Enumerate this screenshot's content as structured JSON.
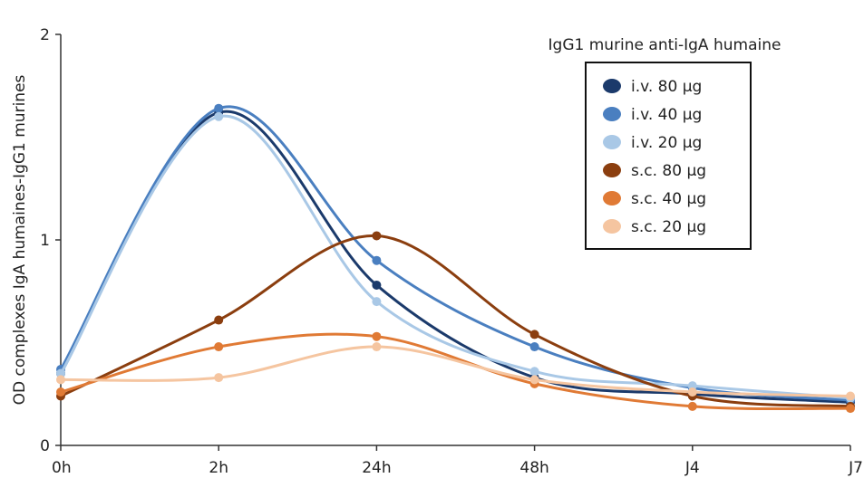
{
  "chart_data": {
    "type": "line",
    "title": "",
    "xlabel": "",
    "ylabel": "OD complexes IgA humaines-IgG1 murines",
    "categories": [
      "0h",
      "2h",
      "24h",
      "48h",
      "J4",
      "J7"
    ],
    "yticks": [
      "0",
      "1",
      "2"
    ],
    "ylim": [
      0,
      2
    ],
    "grid": false,
    "legend": {
      "title": "IgG1 murine anti-IgA humaine",
      "placement": "top-right"
    },
    "series": [
      {
        "name": "i.v. 80 µg",
        "color": "#1b3a6b",
        "values": [
          0.35,
          1.62,
          0.78,
          0.33,
          0.25,
          0.21
        ]
      },
      {
        "name": "i.v. 40 µg",
        "color": "#4a7fc0",
        "values": [
          0.37,
          1.64,
          0.9,
          0.48,
          0.28,
          0.22
        ]
      },
      {
        "name": "i.v. 20 µg",
        "color": "#a9c8e6",
        "values": [
          0.35,
          1.6,
          0.7,
          0.36,
          0.29,
          0.23
        ]
      },
      {
        "name": "s.c. 80 µg",
        "color": "#8b3e0f",
        "values": [
          0.24,
          0.61,
          1.02,
          0.54,
          0.24,
          0.19
        ]
      },
      {
        "name": "s.c. 40 µg",
        "color": "#e07a35",
        "values": [
          0.26,
          0.48,
          0.53,
          0.3,
          0.19,
          0.18
        ]
      },
      {
        "name": "s.c. 20 µg",
        "color": "#f5c5a0",
        "values": [
          0.32,
          0.33,
          0.48,
          0.32,
          0.26,
          0.24
        ]
      }
    ]
  }
}
